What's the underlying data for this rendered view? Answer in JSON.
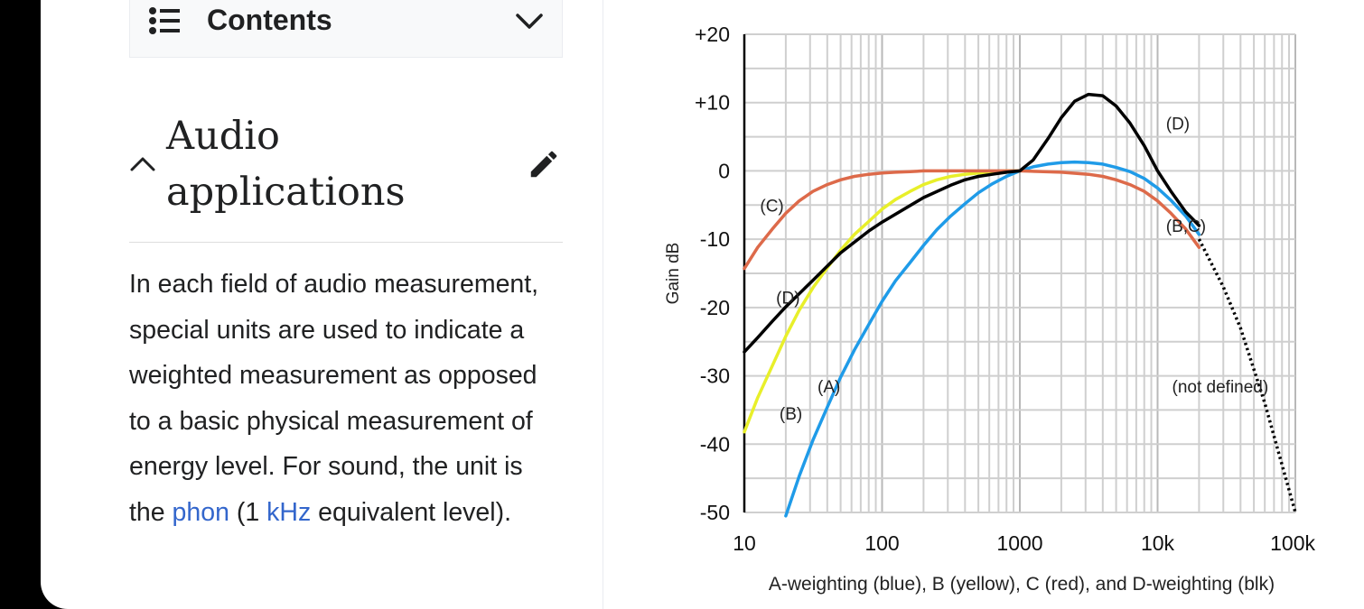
{
  "toc": {
    "label": "Contents",
    "icon": "list-icon",
    "toggle_icon": "chevron-down-icon"
  },
  "section": {
    "title_line1": "Audio",
    "title_line2": "applications",
    "collapse_icon": "chevron-up-icon",
    "edit_icon": "pencil-icon"
  },
  "paragraph": {
    "text_1": "In each field of audio measurement, special units are used to indicate a weighted measurement as opposed to a basic physical measurement of energy level. For sound, the unit is the ",
    "link_phon": "phon",
    "text_2": " (1 ",
    "link_khz": "kHz",
    "text_3": " equivalent level).",
    "link_color": "#3366cc"
  },
  "chart_data": {
    "type": "line",
    "title": "",
    "xlabel": "A-weighting (blue), B (yellow), C (red), and D-weighting (blk)",
    "ylabel": "Gain dB",
    "x_scale": "log",
    "xlim": [
      10,
      100000
    ],
    "ylim": [
      -50,
      20
    ],
    "x_ticks": [
      {
        "value": 10,
        "label": "10"
      },
      {
        "value": 100,
        "label": "100"
      },
      {
        "value": 1000,
        "label": "1000"
      },
      {
        "value": 10000,
        "label": "10k"
      },
      {
        "value": 100000,
        "label": "100k"
      }
    ],
    "y_ticks": [
      {
        "value": 20,
        "label": "+20"
      },
      {
        "value": 10,
        "label": "+10"
      },
      {
        "value": 0,
        "label": "0"
      },
      {
        "value": -10,
        "label": "-10"
      },
      {
        "value": -20,
        "label": "-20"
      },
      {
        "value": -30,
        "label": "-30"
      },
      {
        "value": -40,
        "label": "-40"
      },
      {
        "value": -50,
        "label": "-50"
      }
    ],
    "grid": true,
    "series": [
      {
        "color": "#1f9be8",
        "x": [
          20,
          25,
          31.5,
          40,
          50,
          63,
          80,
          100,
          125,
          160,
          200,
          250,
          315,
          400,
          500,
          630,
          800,
          1000,
          1250,
          1600,
          2000,
          2500,
          3150,
          4000,
          5000,
          6300,
          8000,
          10000,
          12500,
          16000,
          20000
        ],
        "y": [
          -50.5,
          -44.7,
          -39.4,
          -34.6,
          -30.2,
          -26.2,
          -22.5,
          -19.1,
          -16.1,
          -13.4,
          -10.9,
          -8.6,
          -6.6,
          -4.8,
          -3.2,
          -1.9,
          -0.8,
          0,
          0.6,
          1.0,
          1.2,
          1.3,
          1.2,
          1.0,
          0.5,
          -0.1,
          -1.1,
          -2.5,
          -4.3,
          -6.6,
          -9.3
        ]
      },
      {
        "color": "#e8ef2a",
        "x": [
          10,
          12.5,
          16,
          20,
          25,
          31.5,
          40,
          50,
          63,
          80,
          100,
          125,
          160,
          200,
          250,
          315,
          400,
          500,
          630,
          800,
          1000
        ],
        "y": [
          -38.2,
          -33.2,
          -28.5,
          -24.2,
          -20.4,
          -17.1,
          -14.2,
          -11.6,
          -9.3,
          -7.4,
          -5.6,
          -4.2,
          -3.0,
          -2.0,
          -1.3,
          -0.8,
          -0.5,
          -0.3,
          -0.1,
          0,
          0
        ]
      },
      {
        "color": "#dd6a4a",
        "x": [
          10,
          12.5,
          16,
          20,
          25,
          31.5,
          40,
          50,
          63,
          80,
          100,
          125,
          160,
          200,
          250,
          400,
          1000,
          2000,
          3150,
          4000,
          5000,
          6300,
          8000,
          10000,
          12500,
          16000,
          20000
        ],
        "y": [
          -14.3,
          -11.2,
          -8.5,
          -6.2,
          -4.4,
          -3.0,
          -2.0,
          -1.3,
          -0.8,
          -0.5,
          -0.3,
          -0.2,
          -0.1,
          0,
          0,
          0,
          0,
          -0.2,
          -0.5,
          -0.8,
          -1.3,
          -2.0,
          -3.0,
          -4.4,
          -6.2,
          -8.5,
          -11.2
        ]
      },
      {
        "color": "#000000",
        "x": [
          10,
          12.5,
          16,
          20,
          31.5,
          50,
          80,
          100,
          200,
          315,
          400,
          500,
          630,
          800,
          1000,
          1250,
          1600,
          2000,
          2500,
          3150,
          4000,
          5000,
          6300,
          8000,
          10000,
          12500,
          16000,
          20000
        ],
        "y": [
          -26.5,
          -24.4,
          -22.0,
          -19.9,
          -16.0,
          -12.0,
          -8.8,
          -7.5,
          -3.9,
          -2.1,
          -1.3,
          -0.8,
          -0.5,
          -0.2,
          0,
          1.6,
          4.7,
          7.8,
          10.2,
          11.2,
          11.0,
          9.5,
          7.0,
          3.7,
          0,
          -3.0,
          -6.0,
          -8.0
        ]
      },
      {
        "color": "#000000",
        "dashed": true,
        "x": [
          20000,
          30000,
          40000,
          60000,
          80000,
          100000
        ],
        "y": [
          -10,
          -17,
          -23,
          -34,
          -43,
          -50
        ]
      }
    ],
    "annotations": [
      {
        "text": "(D)",
        "x": 11500,
        "y": 7
      },
      {
        "text": "(C)",
        "x": 13,
        "y": -5
      },
      {
        "text": "(B,C)",
        "x": 11500,
        "y": -8
      },
      {
        "text": "(D)",
        "x": 17,
        "y": -18.5
      },
      {
        "text": "(A)",
        "x": 34,
        "y": -31.5
      },
      {
        "text": "(B)",
        "x": 18,
        "y": -35.5
      },
      {
        "text": "(not defined)",
        "x": 28500,
        "y": -31.5
      }
    ]
  }
}
